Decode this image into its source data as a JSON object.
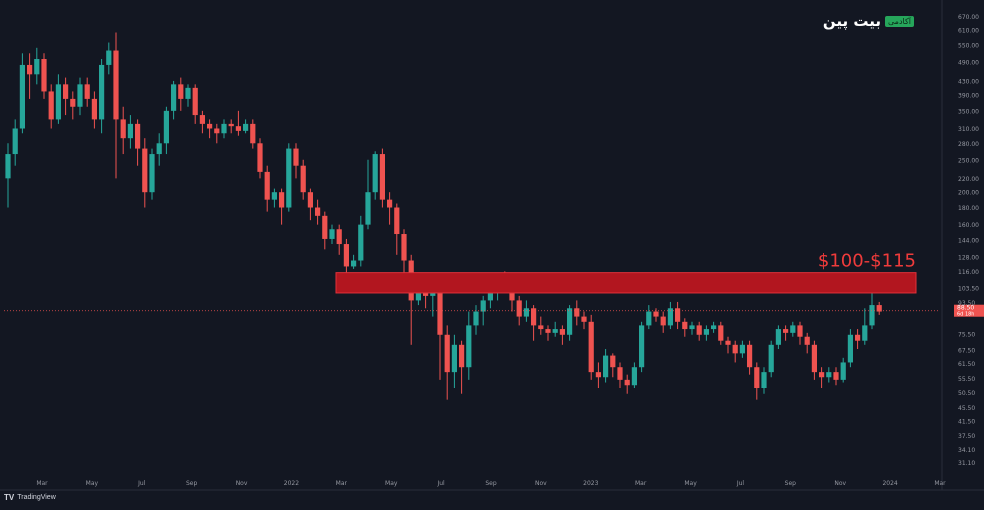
{
  "brand": {
    "name": "بیت پین",
    "tag": "آکادمی"
  },
  "footer": {
    "logo_text": "TradingView"
  },
  "annotation": {
    "text": "$100-$115",
    "zone_low": 100,
    "zone_high": 115
  },
  "last_price": {
    "value": "88.50",
    "countdown": "6d 18h"
  },
  "colors": {
    "up": "#26a69a",
    "down": "#ef5350",
    "zone": "#b2161f",
    "background": "#131722"
  },
  "chart_data": {
    "type": "candlestick",
    "y_scale": "log",
    "ylim": [
      28,
      720
    ],
    "grid": false,
    "y_ticks": [
      "670.00",
      "610.00",
      "550.00",
      "490.00",
      "430.00",
      "390.00",
      "350.00",
      "310.00",
      "280.00",
      "250.00",
      "220.00",
      "200.00",
      "180.00",
      "160.00",
      "144.00",
      "128.00",
      "116.00",
      "103.50",
      "93.50",
      "75.50",
      "67.50",
      "61.50",
      "55.50",
      "50.50",
      "45.50",
      "41.50",
      "37.50",
      "34.10",
      "31.10"
    ],
    "x_ticks": [
      "Mar",
      "May",
      "Jul",
      "Sep",
      "Nov",
      "2022",
      "Mar",
      "May",
      "Jul",
      "Sep",
      "Nov",
      "2023",
      "Mar",
      "May",
      "Jul",
      "Sep",
      "Nov",
      "2024",
      "Mar"
    ],
    "candles": [
      [
        220,
        260,
        180,
        280
      ],
      [
        260,
        310,
        240,
        330
      ],
      [
        310,
        480,
        300,
        520
      ],
      [
        480,
        450,
        380,
        520
      ],
      [
        450,
        500,
        420,
        540
      ],
      [
        500,
        400,
        380,
        520
      ],
      [
        400,
        330,
        310,
        420
      ],
      [
        330,
        420,
        320,
        450
      ],
      [
        420,
        380,
        340,
        440
      ],
      [
        380,
        360,
        330,
        400
      ],
      [
        360,
        420,
        340,
        440
      ],
      [
        420,
        380,
        360,
        440
      ],
      [
        380,
        330,
        310,
        400
      ],
      [
        330,
        480,
        300,
        500
      ],
      [
        480,
        530,
        450,
        560
      ],
      [
        530,
        330,
        220,
        600
      ],
      [
        330,
        290,
        260,
        360
      ],
      [
        290,
        320,
        270,
        340
      ],
      [
        320,
        270,
        240,
        330
      ],
      [
        270,
        200,
        180,
        290
      ],
      [
        200,
        260,
        190,
        270
      ],
      [
        260,
        280,
        240,
        300
      ],
      [
        280,
        350,
        260,
        360
      ],
      [
        350,
        420,
        330,
        430
      ],
      [
        420,
        380,
        350,
        440
      ],
      [
        380,
        410,
        360,
        420
      ],
      [
        410,
        340,
        320,
        420
      ],
      [
        340,
        320,
        300,
        350
      ],
      [
        320,
        310,
        290,
        330
      ],
      [
        310,
        300,
        280,
        320
      ],
      [
        300,
        320,
        290,
        330
      ],
      [
        320,
        315,
        300,
        330
      ],
      [
        315,
        305,
        295,
        350
      ],
      [
        305,
        320,
        300,
        330
      ],
      [
        320,
        280,
        270,
        330
      ],
      [
        280,
        230,
        220,
        290
      ],
      [
        230,
        190,
        175,
        240
      ],
      [
        190,
        200,
        180,
        205
      ],
      [
        200,
        180,
        160,
        205
      ],
      [
        180,
        270,
        175,
        280
      ],
      [
        270,
        240,
        220,
        280
      ],
      [
        240,
        200,
        190,
        250
      ],
      [
        200,
        180,
        165,
        205
      ],
      [
        180,
        170,
        160,
        190
      ],
      [
        170,
        145,
        135,
        175
      ],
      [
        145,
        155,
        140,
        160
      ],
      [
        155,
        140,
        130,
        160
      ],
      [
        140,
        120,
        115,
        145
      ],
      [
        120,
        125,
        118,
        130
      ],
      [
        125,
        160,
        120,
        170
      ],
      [
        160,
        200,
        155,
        250
      ],
      [
        200,
        260,
        190,
        265
      ],
      [
        260,
        190,
        180,
        270
      ],
      [
        190,
        180,
        160,
        200
      ],
      [
        180,
        150,
        130,
        185
      ],
      [
        150,
        125,
        110,
        155
      ],
      [
        125,
        95,
        70,
        130
      ],
      [
        95,
        100,
        92,
        110
      ],
      [
        100,
        98,
        90,
        105
      ],
      [
        98,
        100,
        85,
        106
      ],
      [
        100,
        75,
        55,
        105
      ],
      [
        75,
        58,
        48,
        80
      ],
      [
        58,
        70,
        52,
        75
      ],
      [
        70,
        60,
        50,
        72
      ],
      [
        60,
        80,
        55,
        88
      ],
      [
        80,
        88,
        75,
        92
      ],
      [
        88,
        95,
        80,
        98
      ],
      [
        95,
        100,
        90,
        108
      ],
      [
        100,
        112,
        95,
        115
      ],
      [
        112,
        108,
        100,
        116
      ],
      [
        108,
        95,
        88,
        110
      ],
      [
        95,
        85,
        80,
        98
      ],
      [
        85,
        90,
        82,
        95
      ],
      [
        90,
        80,
        72,
        92
      ],
      [
        80,
        78,
        75,
        85
      ],
      [
        78,
        76,
        72,
        80
      ],
      [
        76,
        78,
        74,
        82
      ],
      [
        78,
        75,
        70,
        80
      ],
      [
        75,
        90,
        72,
        92
      ],
      [
        90,
        85,
        80,
        95
      ],
      [
        85,
        82,
        78,
        88
      ],
      [
        82,
        58,
        55,
        86
      ],
      [
        58,
        56,
        52,
        62
      ],
      [
        56,
        65,
        54,
        68
      ],
      [
        65,
        60,
        56,
        66
      ],
      [
        60,
        55,
        52,
        62
      ],
      [
        55,
        53,
        50,
        57
      ],
      [
        53,
        60,
        52,
        62
      ],
      [
        60,
        80,
        58,
        82
      ],
      [
        80,
        88,
        78,
        92
      ],
      [
        88,
        85,
        82,
        90
      ],
      [
        85,
        80,
        76,
        88
      ],
      [
        80,
        90,
        78,
        94
      ],
      [
        90,
        82,
        78,
        94
      ],
      [
        82,
        78,
        74,
        84
      ],
      [
        78,
        80,
        75,
        82
      ],
      [
        80,
        75,
        72,
        82
      ],
      [
        75,
        78,
        72,
        80
      ],
      [
        78,
        80,
        76,
        82
      ],
      [
        80,
        72,
        70,
        82
      ],
      [
        72,
        70,
        66,
        74
      ],
      [
        70,
        66,
        62,
        72
      ],
      [
        66,
        70,
        64,
        72
      ],
      [
        70,
        60,
        57,
        72
      ],
      [
        60,
        52,
        48,
        62
      ],
      [
        52,
        58,
        50,
        60
      ],
      [
        58,
        70,
        56,
        72
      ],
      [
        70,
        78,
        68,
        80
      ],
      [
        78,
        76,
        72,
        80
      ],
      [
        76,
        80,
        74,
        82
      ],
      [
        80,
        74,
        70,
        82
      ],
      [
        74,
        70,
        66,
        76
      ],
      [
        70,
        58,
        55,
        72
      ],
      [
        58,
        56,
        52,
        60
      ],
      [
        56,
        58,
        54,
        60
      ],
      [
        58,
        55,
        53,
        60
      ],
      [
        55,
        62,
        54,
        64
      ],
      [
        62,
        75,
        60,
        78
      ],
      [
        75,
        72,
        68,
        78
      ],
      [
        72,
        80,
        70,
        90
      ],
      [
        80,
        92,
        78,
        106
      ],
      [
        92,
        88,
        86,
        94
      ]
    ]
  }
}
